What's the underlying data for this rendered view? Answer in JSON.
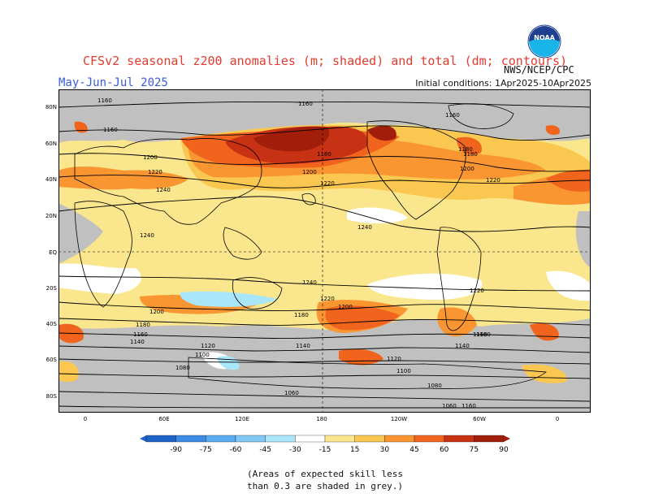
{
  "title": "CFSv2 seasonal z200 anomalies (m; shaded) and total (dm; contours)",
  "period": "May-Jun-Jul 2025",
  "initial_conditions": "Initial conditions: 1Apr2025-10Apr2025",
  "agency": "NWS/NCEP/CPC",
  "logo_text": "NOAA",
  "lat_labels": [
    "80N",
    "60N",
    "40N",
    "20N",
    "EQ",
    "20S",
    "40S",
    "60S",
    "80S"
  ],
  "lon_labels": [
    "0",
    "60E",
    "120E",
    "180",
    "120W",
    "60W",
    "0"
  ],
  "contour_labels": [
    "1160",
    "1160",
    "1160",
    "1180",
    "1160",
    "1180",
    "1200",
    "1200",
    "1220",
    "1220",
    "1180",
    "1200",
    "1220",
    "1240",
    "1240",
    "1240",
    "1240",
    "1220",
    "1220",
    "1200",
    "1200",
    "1180",
    "1180",
    "1160",
    "1160",
    "1140",
    "1140",
    "1140",
    "1120",
    "1120",
    "1100",
    "1100",
    "1080",
    "1080",
    "1060",
    "1060",
    "1160",
    "1160"
  ],
  "legend": {
    "ticks": [
      "-90",
      "-75",
      "-60",
      "-45",
      "-30",
      "-15",
      "15",
      "30",
      "45",
      "60",
      "75",
      "90"
    ],
    "colors": [
      "#1e64c8",
      "#3c8ce6",
      "#5aaaf0",
      "#82c8f5",
      "#aae6fa",
      "#ffffff",
      "#fae68c",
      "#fac850",
      "#fa9632",
      "#f0641e",
      "#c83214",
      "#a01e0a"
    ]
  },
  "footnote_line1": "(Areas of expected skill less",
  "footnote_line2": "than 0.3 are shaded in grey.)",
  "colors": {
    "title": "#e23b2f",
    "period": "#3b5bdb",
    "grey_mask": "#c0c0c0"
  }
}
